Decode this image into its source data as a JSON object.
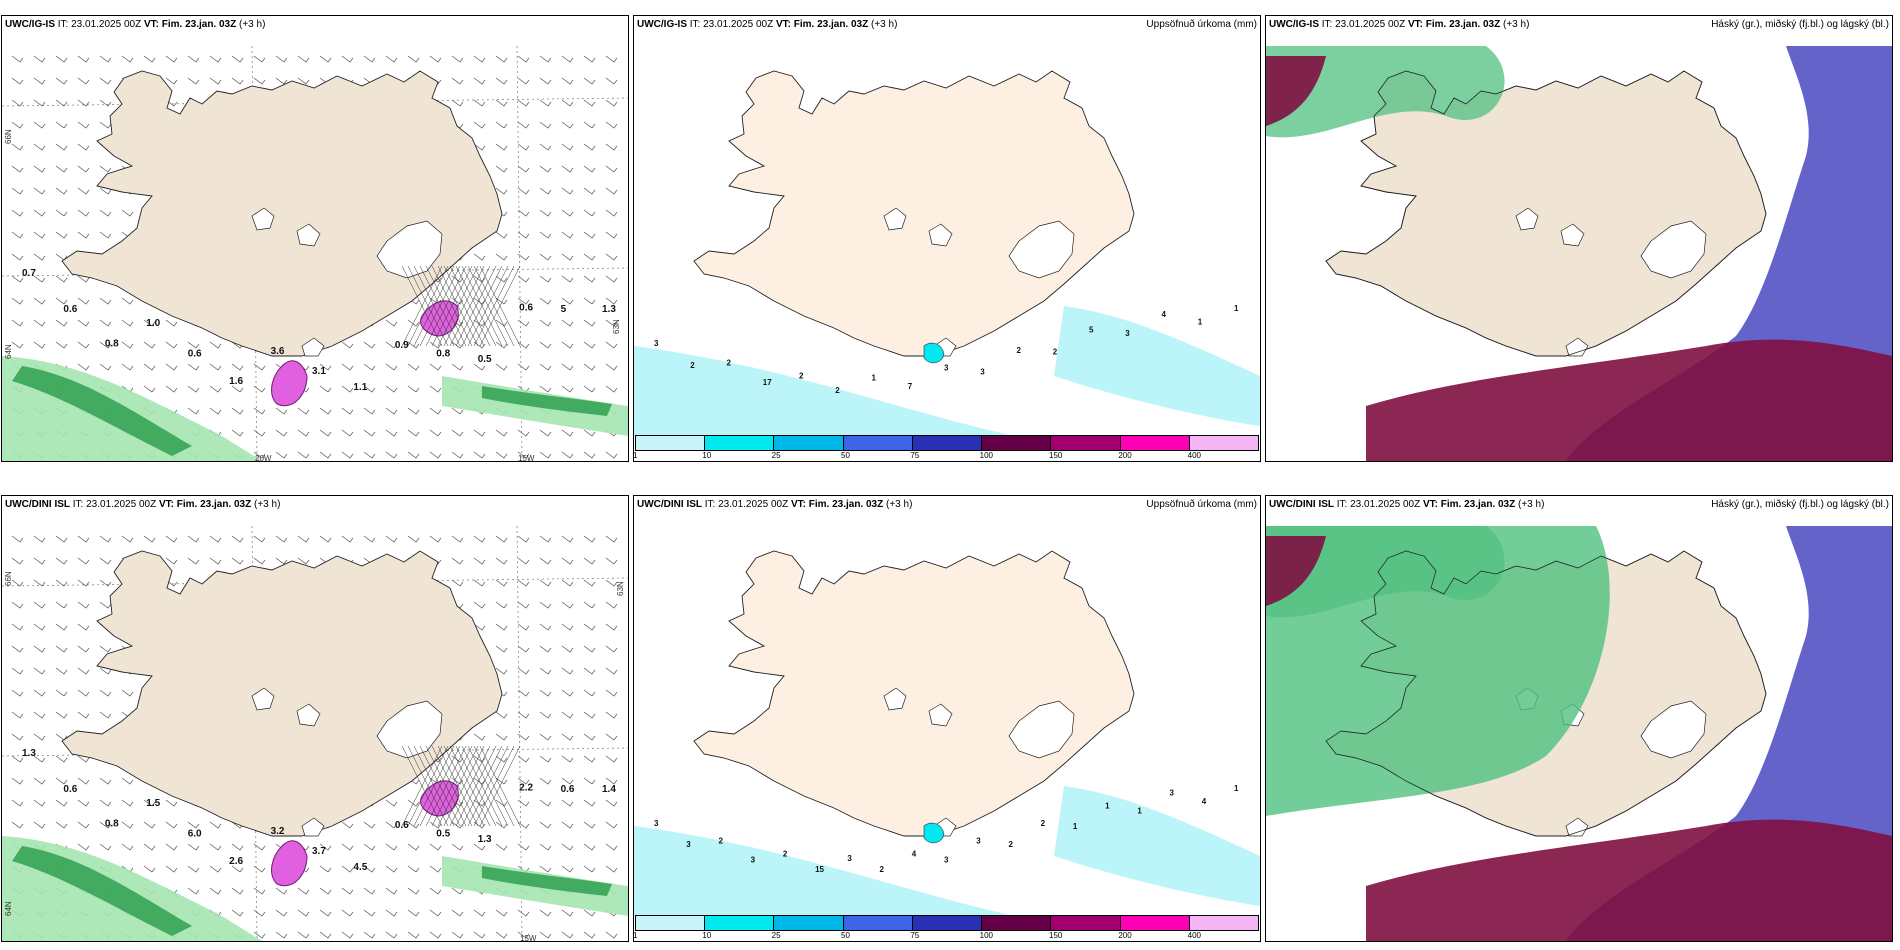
{
  "panels": [
    {
      "id": "ig-wind",
      "model": "UWC/IG-IS",
      "it_label": "IT:",
      "it_value": "23.01.2025 00Z",
      "vt_label": "VT:",
      "vt_value": "Fim. 23.jan. 03Z",
      "lead": "(+3 h)",
      "right_title": "",
      "lon_labels": [
        "20W",
        "15W"
      ],
      "lat_labels": [
        "66N",
        "64N",
        "63N"
      ],
      "point_labels": [
        "0.7",
        "0.6",
        "0.8",
        "1.0",
        "0.6",
        "1.6",
        "3.6",
        "3.1",
        "1.1",
        "0.9",
        "0.8",
        "0.5",
        "0.6",
        "5",
        "1.3"
      ]
    },
    {
      "id": "ig-precip",
      "model": "UWC/IG-IS",
      "it_label": "IT:",
      "it_value": "23.01.2025 00Z",
      "vt_label": "VT:",
      "vt_value": "Fim. 23.jan. 03Z",
      "lead": "(+3 h)",
      "right_title": "Uppsöfnuð úrkoma (mm)",
      "point_labels": [
        "3",
        "2",
        "2",
        "17",
        "2",
        "2",
        "1",
        "7",
        "3",
        "3",
        "2",
        "2",
        "5",
        "3",
        "4",
        "1",
        "1"
      ]
    },
    {
      "id": "ig-cloud",
      "model": "UWC/IG-IS",
      "it_label": "IT:",
      "it_value": "23.01.2025 00Z",
      "vt_label": "VT:",
      "vt_value": "Fim. 23.jan. 03Z",
      "lead": "(+3 h)",
      "right_title": "Háský (gr.), miðský (fj.bl.) og lágský (bl.)"
    },
    {
      "id": "dini-wind",
      "model": "UWC/DINI ISL",
      "it_label": "IT:",
      "it_value": "23.01.2025 00Z",
      "vt_label": "VT:",
      "vt_value": "Fim. 23.jan. 03Z",
      "lead": "(+3 h)",
      "right_title": "",
      "lon_labels": [
        "15W"
      ],
      "lat_labels": [
        "66N",
        "64N",
        "63N"
      ],
      "point_labels": [
        "1.3",
        "0.6",
        "0.8",
        "1.5",
        "6.0",
        "2.6",
        "3.2",
        "3.7",
        "4.5",
        "0.6",
        "0.5",
        "1.3",
        "2.2",
        "0.6",
        "1.4"
      ]
    },
    {
      "id": "dini-precip",
      "model": "UWC/DINI ISL",
      "it_label": "IT:",
      "it_value": "23.01.2025 00Z",
      "vt_label": "VT:",
      "vt_value": "Fim. 23.jan. 03Z",
      "lead": "(+3 h)",
      "right_title": "Uppsöfnuð úrkoma (mm)",
      "point_labels": [
        "3",
        "3",
        "2",
        "3",
        "2",
        "15",
        "3",
        "2",
        "4",
        "3",
        "3",
        "2",
        "2",
        "1",
        "1",
        "1",
        "3",
        "4",
        "1"
      ]
    },
    {
      "id": "dini-cloud",
      "model": "UWC/DINI ISL",
      "it_label": "IT:",
      "it_value": "23.01.2025 00Z",
      "vt_label": "VT:",
      "vt_value": "Fim. 23.jan. 03Z",
      "lead": "(+3 h)",
      "right_title": "Háský (gr.), miðský (fj.bl.) og lágský (bl.)"
    }
  ],
  "colorbar": {
    "ticks": [
      "1",
      "10",
      "25",
      "50",
      "75",
      "100",
      "150",
      "200",
      "400"
    ],
    "colors": [
      "#c8f4fa",
      "#00e8f0",
      "#00b8e8",
      "#3c64e6",
      "#2830b4",
      "#640046",
      "#a0006e",
      "#ff00b4",
      "#f5b4f5"
    ]
  },
  "colors": {
    "land": "#f0e4d4",
    "land_light": "#fdf0e2",
    "precip_pink": "#e060e0",
    "precip_green": "#2fa050",
    "precip_lightgreen": "#a6e6b0",
    "precip_cyan": "#b4f4f8",
    "cloud_high": "#50c080",
    "cloud_mid": "#4848c0",
    "cloud_low": "#801040"
  }
}
